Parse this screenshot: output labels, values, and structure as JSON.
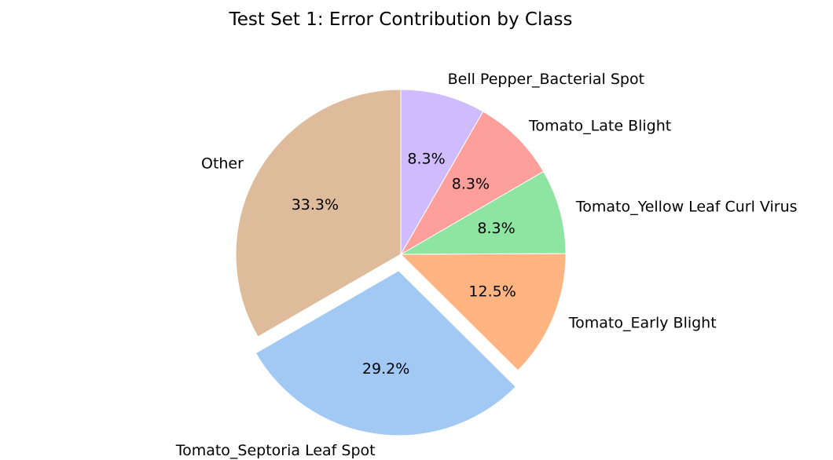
{
  "chart_data": {
    "type": "pie",
    "title": "Test Set 1: Error Contribution by Class",
    "slices": [
      {
        "label": "Other",
        "value": 33.3,
        "pct_label": "33.3%",
        "color": "#debb9b",
        "explode": false
      },
      {
        "label": "Tomato_Septoria Leaf Spot",
        "value": 29.2,
        "pct_label": "29.2%",
        "color": "#a1c9f4",
        "explode": true
      },
      {
        "label": "Tomato_Early Blight",
        "value": 12.5,
        "pct_label": "12.5%",
        "color": "#ffb482",
        "explode": false
      },
      {
        "label": "Tomato_Yellow Leaf Curl Virus",
        "value": 8.3,
        "pct_label": "8.3%",
        "color": "#8de5a1",
        "explode": false
      },
      {
        "label": "Tomato_Late Blight",
        "value": 8.3,
        "pct_label": "8.3%",
        "color": "#ff9f9b",
        "explode": false
      },
      {
        "label": "Bell Pepper_Bacterial Spot",
        "value": 8.3,
        "pct_label": "8.3%",
        "color": "#d0bbff",
        "explode": false
      }
    ],
    "start_angle_deg": 90,
    "direction": "counterclockwise",
    "wedge_edge_color": "#ffffff"
  }
}
